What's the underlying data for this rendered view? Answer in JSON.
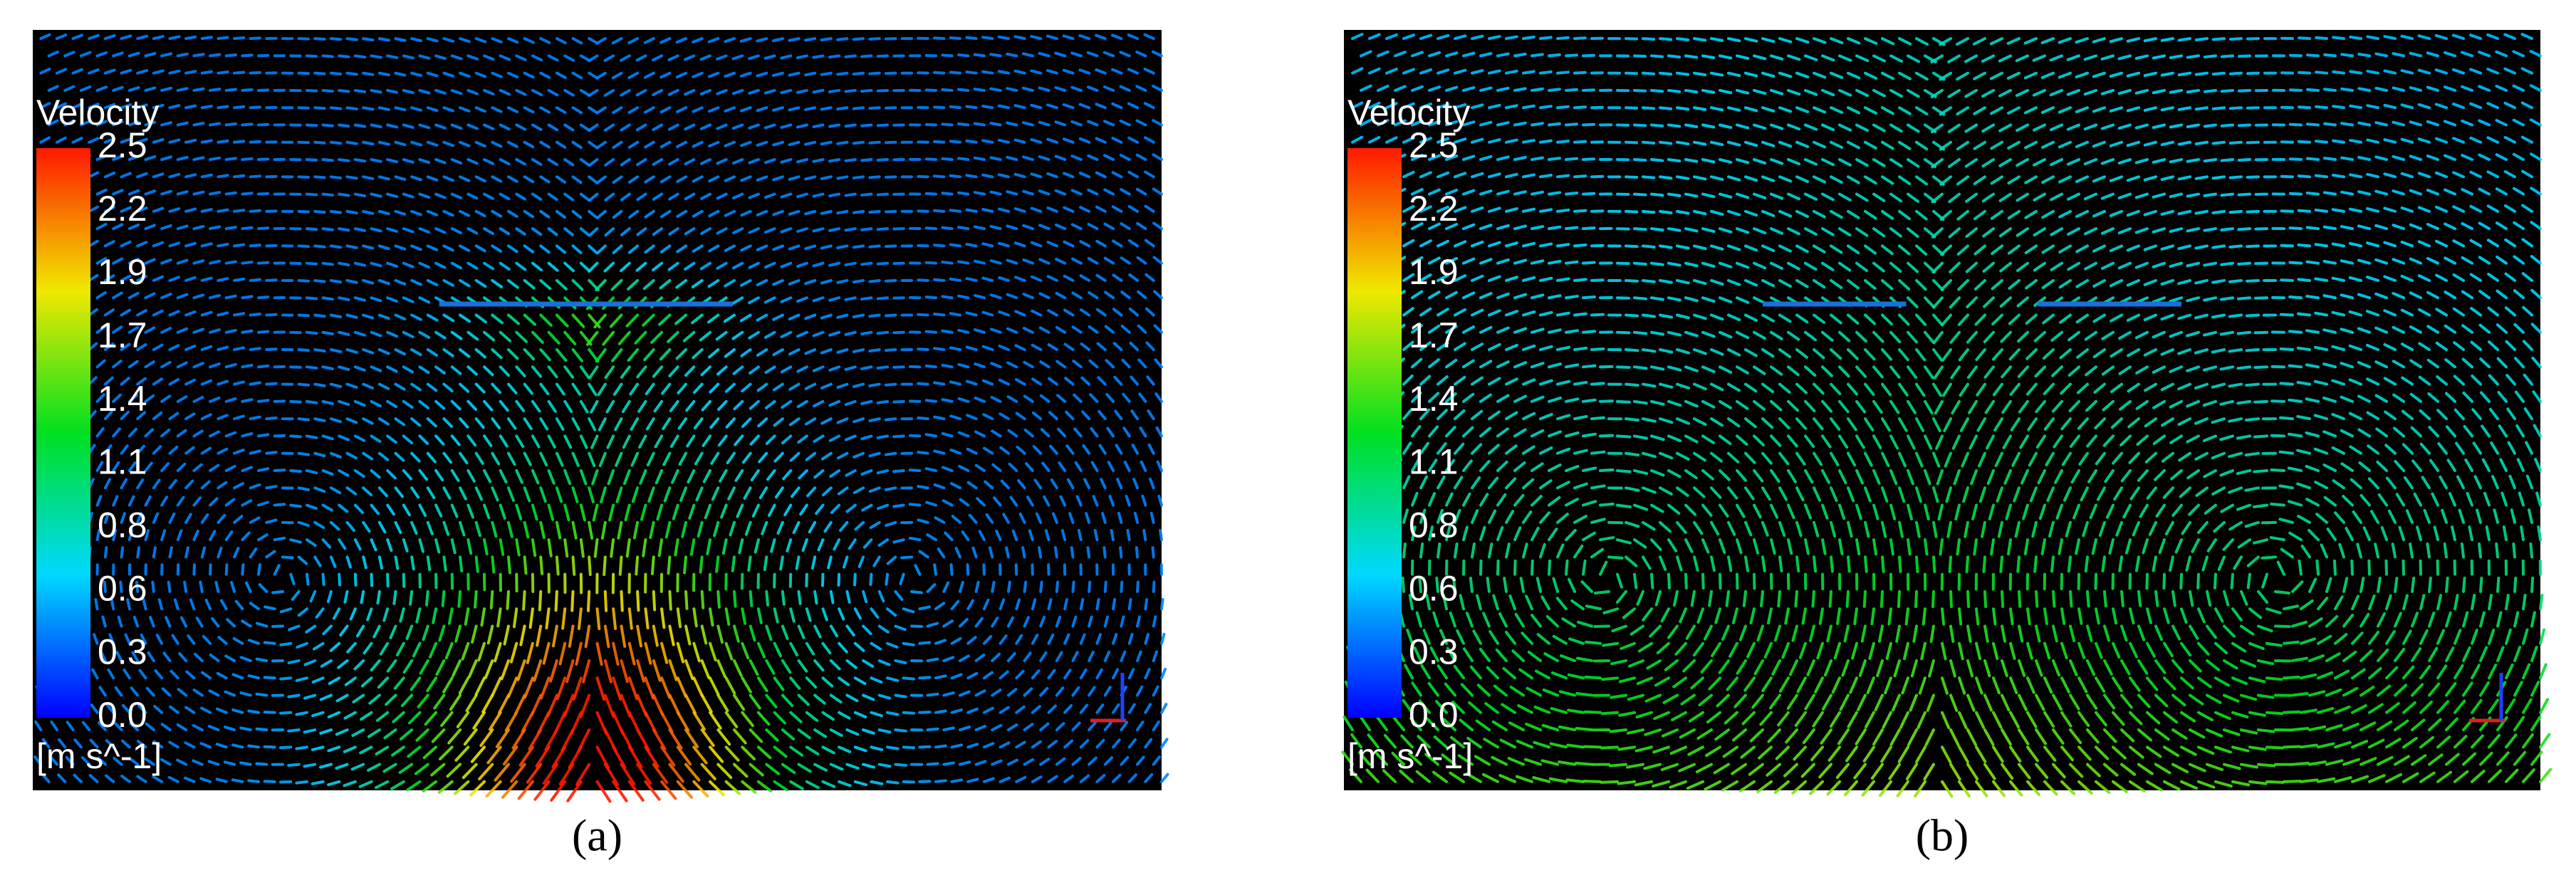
{
  "colorbar": {
    "title": "Velocity",
    "unit": "[m s^-1]",
    "ticks": [
      "2.5",
      "2.2",
      "1.9",
      "1.7",
      "1.4",
      "1.1",
      "0.8",
      "0.6",
      "0.3",
      "0.0"
    ]
  },
  "panels": [
    {
      "label": "(a)"
    },
    {
      "label": "(b)"
    }
  ]
}
